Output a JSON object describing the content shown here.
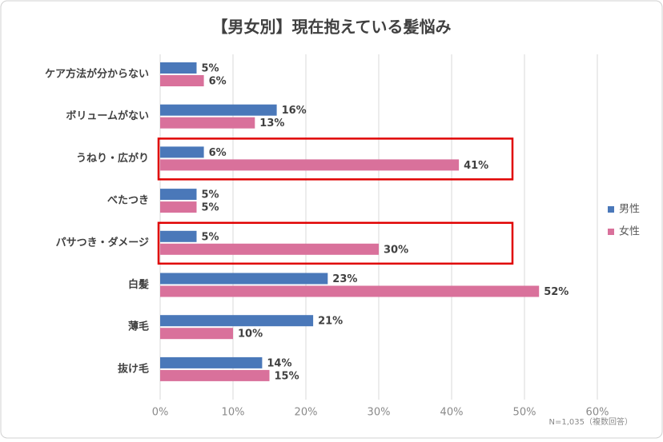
{
  "chart_data": {
    "type": "hbar",
    "title": "【男女別】現在抱えている髪悩み",
    "categories": [
      "ケア方法が分からない",
      "ボリュームがない",
      "うねり・広がり",
      "べたつき",
      "パサつき・ダメージ",
      "白髪",
      "薄毛",
      "抜け毛"
    ],
    "series": [
      {
        "name": "男性",
        "color": "#4a78b9",
        "values": [
          5,
          16,
          6,
          5,
          5,
          23,
          21,
          14
        ],
        "value_labels": [
          "5%",
          "16%",
          "6%",
          "5%",
          "5%",
          "23%",
          "21%",
          "14%"
        ]
      },
      {
        "name": "女性",
        "color": "#d9719b",
        "values": [
          6,
          13,
          41,
          5,
          30,
          52,
          10,
          15
        ],
        "value_labels": [
          "6%",
          "13%",
          "41%",
          "5%",
          "30%",
          "52%",
          "10%",
          "15%"
        ]
      }
    ],
    "xlim": [
      0,
      60
    ],
    "xticks": [
      {
        "value": 0,
        "label": "0%"
      },
      {
        "value": 10,
        "label": "10%"
      },
      {
        "value": 20,
        "label": "20%"
      },
      {
        "value": 30,
        "label": "30%"
      },
      {
        "value": 40,
        "label": "40%"
      },
      {
        "value": 50,
        "label": "50%"
      },
      {
        "value": 60,
        "label": "60%"
      }
    ],
    "grid": true,
    "legend": "right",
    "highlight_indices": [
      2,
      4
    ],
    "highlight_color": "#e00000",
    "annotation": "N=1,035（複数回答）"
  }
}
